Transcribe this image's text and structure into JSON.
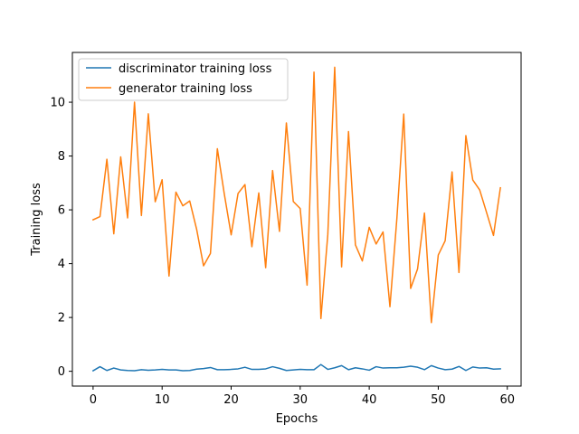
{
  "chart_data": {
    "type": "line",
    "title": "",
    "xlabel": "Epochs",
    "ylabel": "Training loss",
    "xlim": [
      -3,
      62
    ],
    "ylim": [
      -0.55,
      11.85
    ],
    "xticks": [
      0,
      10,
      20,
      30,
      40,
      50,
      60
    ],
    "yticks": [
      0,
      2,
      4,
      6,
      8,
      10
    ],
    "grid": false,
    "legend_position": "top-left",
    "x": [
      0,
      1,
      2,
      3,
      4,
      5,
      6,
      7,
      8,
      9,
      10,
      11,
      12,
      13,
      14,
      15,
      16,
      17,
      18,
      19,
      20,
      21,
      22,
      23,
      24,
      25,
      26,
      27,
      28,
      29,
      30,
      31,
      32,
      33,
      34,
      35,
      36,
      37,
      38,
      39,
      40,
      41,
      42,
      43,
      44,
      45,
      46,
      47,
      48,
      49,
      50,
      51,
      52,
      53,
      54,
      55,
      56,
      57,
      58,
      59
    ],
    "series": [
      {
        "name": "discriminator training loss",
        "color": "#1f77b4",
        "values": [
          0.02,
          0.17,
          0.03,
          0.12,
          0.05,
          0.03,
          0.02,
          0.06,
          0.04,
          0.05,
          0.07,
          0.05,
          0.05,
          0.02,
          0.03,
          0.08,
          0.1,
          0.14,
          0.06,
          0.06,
          0.07,
          0.09,
          0.15,
          0.07,
          0.07,
          0.09,
          0.17,
          0.11,
          0.03,
          0.05,
          0.07,
          0.06,
          0.06,
          0.25,
          0.07,
          0.13,
          0.21,
          0.06,
          0.13,
          0.09,
          0.04,
          0.17,
          0.12,
          0.13,
          0.13,
          0.15,
          0.19,
          0.15,
          0.06,
          0.21,
          0.12,
          0.06,
          0.08,
          0.18,
          0.03,
          0.16,
          0.12,
          0.13,
          0.08,
          0.09
        ]
      },
      {
        "name": "generator training loss",
        "color": "#ff7f0e",
        "values": [
          5.63,
          5.75,
          7.88,
          5.11,
          7.97,
          5.7,
          10.0,
          5.79,
          9.57,
          6.3,
          7.12,
          3.54,
          6.66,
          6.15,
          6.33,
          5.28,
          3.92,
          4.38,
          8.27,
          6.6,
          5.07,
          6.61,
          6.94,
          4.63,
          6.63,
          3.85,
          7.46,
          5.2,
          9.23,
          6.31,
          6.05,
          3.2,
          11.12,
          1.96,
          5.08,
          11.3,
          3.88,
          8.91,
          4.7,
          4.1,
          5.35,
          4.73,
          5.18,
          2.4,
          5.66,
          9.56,
          3.08,
          3.8,
          5.88,
          1.81,
          4.32,
          4.85,
          7.41,
          3.67,
          8.76,
          7.11,
          6.74,
          5.9,
          5.05,
          6.82
        ]
      }
    ]
  }
}
